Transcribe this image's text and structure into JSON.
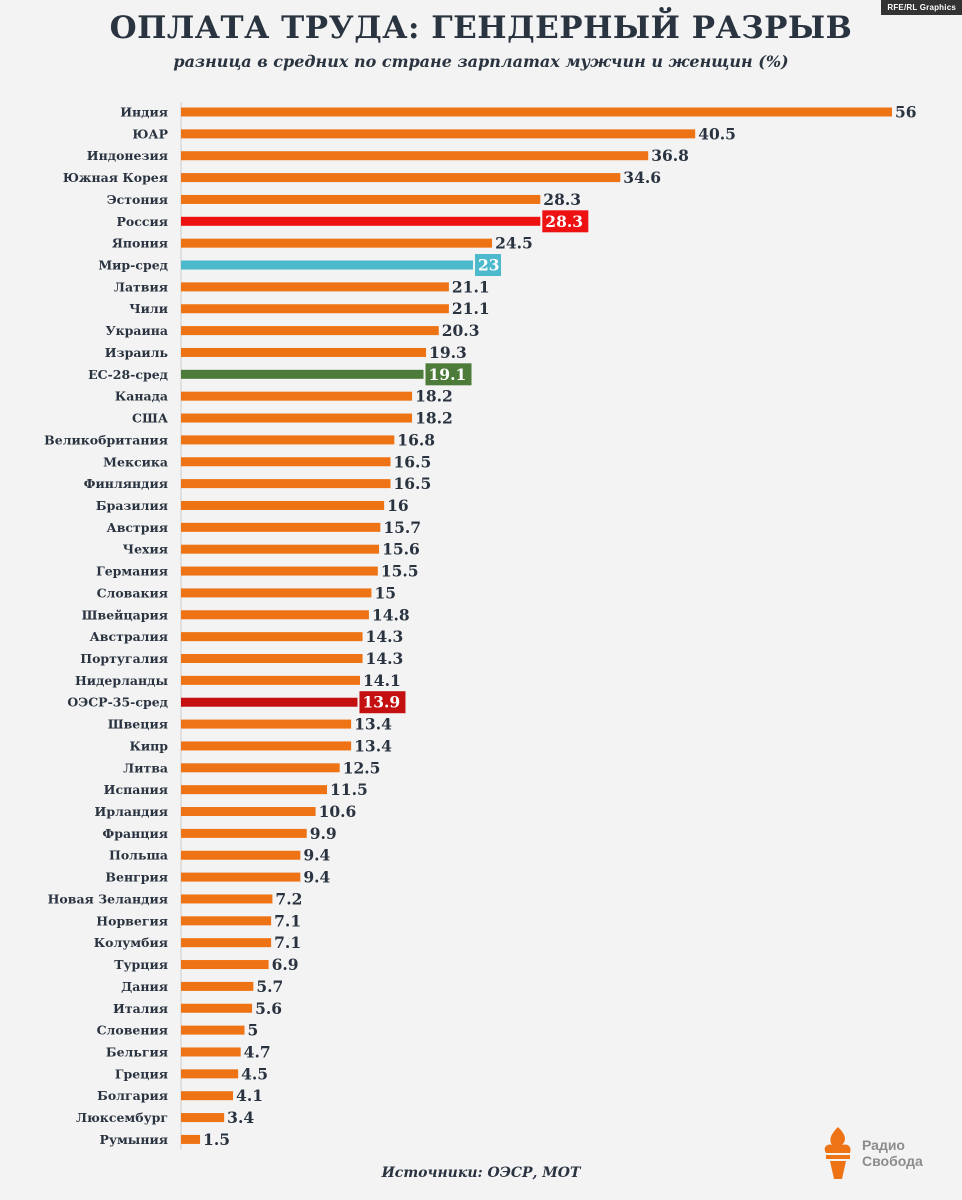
{
  "header": {
    "badge": "RFE/RL Graphics",
    "title": "ОПЛАТА ТРУДА: ГЕНДЕРНЫЙ РАЗРЫВ",
    "subtitle": "разница в средних по стране зарплатах мужчин и женщин (%)"
  },
  "footer": {
    "source": "Источники: ОЭСР, МОТ",
    "logo_line1": "Радио",
    "logo_line2": "Свобода"
  },
  "colors": {
    "bar": "#ee7314",
    "russia": "#ee1111",
    "world": "#4db9cc",
    "eu": "#4d7c3a",
    "oecd": "#c41010",
    "text": "#2a3340",
    "logo": "#ee7314"
  },
  "chart_data": {
    "type": "bar",
    "orientation": "horizontal",
    "title": "ОПЛАТА ТРУДА: ГЕНДЕРНЫЙ РАЗРЫВ",
    "subtitle": "разница в средних по стране зарплатах мужчин и женщин (%)",
    "xlim": [
      0,
      56
    ],
    "grid": false,
    "categories": [
      "Индия",
      "ЮАР",
      "Индонезия",
      "Южная Корея",
      "Эстония",
      "Россия",
      "Япония",
      "Мир-сред",
      "Латвия",
      "Чили",
      "Украина",
      "Израиль",
      "ЕС-28-сред",
      "Канада",
      "США",
      "Великобритания",
      "Мексика",
      "Финляндия",
      "Бразилия",
      "Австрия",
      "Чехия",
      "Германия",
      "Словакия",
      "Швейцария",
      "Австралия",
      "Португалия",
      "Нидерланды",
      "ОЭСР-35-сред",
      "Швеция",
      "Кипр",
      "Литва",
      "Испания",
      "Ирландия",
      "Франция",
      "Польша",
      "Венгрия",
      "Новая Зеландия",
      "Норвегия",
      "Колумбия",
      "Турция",
      "Дания",
      "Италия",
      "Словения",
      "Бельгия",
      "Греция",
      "Болгария",
      "Люксембург",
      "Румыния"
    ],
    "values": [
      56,
      40.5,
      36.8,
      34.6,
      28.3,
      28.3,
      24.5,
      23,
      21.1,
      21.1,
      20.3,
      19.3,
      19.1,
      18.2,
      18.2,
      16.8,
      16.5,
      16.5,
      16,
      15.7,
      15.6,
      15.5,
      15,
      14.8,
      14.3,
      14.3,
      14.1,
      13.9,
      13.4,
      13.4,
      12.5,
      11.5,
      10.6,
      9.9,
      9.4,
      9.4,
      7.2,
      7.1,
      7.1,
      6.9,
      5.7,
      5.6,
      5,
      4.7,
      4.5,
      4.1,
      3.4,
      1.5
    ],
    "highlights": {
      "Россия": "russia",
      "Мир-сред": "world",
      "ЕС-28-сред": "eu",
      "ОЭСР-35-сред": "oecd"
    }
  }
}
